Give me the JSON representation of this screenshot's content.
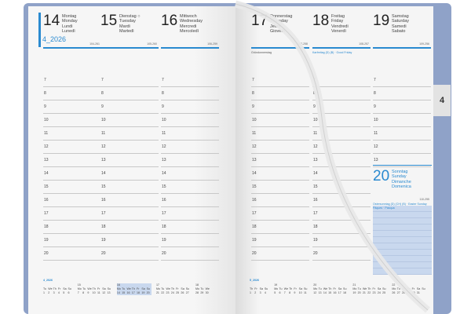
{
  "month_label": "4_2026",
  "tab": "4",
  "hours": [
    "7",
    "8",
    "9",
    "10",
    "11",
    "12",
    "13",
    "14",
    "15",
    "16",
    "17",
    "18",
    "19",
    "20"
  ],
  "left_days": [
    {
      "num": "14",
      "names": [
        "Montag",
        "Monday",
        "Lundi",
        "Lunedì"
      ],
      "code": "104-261",
      "note": ""
    },
    {
      "num": "15",
      "names": [
        "Dienstag ○",
        "Tuesday",
        "Mardi",
        "Martedì"
      ],
      "code": "105-260",
      "note": ""
    },
    {
      "num": "16",
      "names": [
        "Mittwoch",
        "Wednesday",
        "Mercredi",
        "Mercoledì"
      ],
      "code": "106-259",
      "note": ""
    }
  ],
  "right_days": [
    {
      "num": "17",
      "names": [
        "Donnerstag",
        "Thursday",
        "Jeudi",
        "Giovedì"
      ],
      "code": "107-258",
      "note": "Gründonnerstag"
    },
    {
      "num": "18",
      "names": [
        "Freitag",
        "Friday",
        "Vendredi",
        "Venerdì"
      ],
      "code": "108-257",
      "note": "Karfreitag (D) (B) · Good Friday",
      "note_blue": true
    },
    {
      "num": "19",
      "names": [
        "Samstag",
        "Saturday",
        "Samedi",
        "Sabato"
      ],
      "code": "109-256",
      "note": ""
    }
  ],
  "sunday": {
    "num": "20",
    "names": [
      "Sonntag",
      "Sunday",
      "Dimanche",
      "Domenica"
    ],
    "code": "110-255",
    "note": "Ostersonntag (D) (CH) (B) · Easter Sunday",
    "note2": "Pâques · Pasqua"
  },
  "mini_left": {
    "title": "4_2026",
    "weeks": [
      {
        "wk": "",
        "days": [
          "Tu",
          "We",
          "Th",
          "Fr",
          "Sa",
          "Su"
        ],
        "dates": [
          "1",
          "2",
          "3",
          "4",
          "5",
          "6"
        ]
      },
      {
        "wk": "15",
        "days": [
          "Mo",
          "Tu",
          "We",
          "Th",
          "Fr",
          "Sa",
          "Su"
        ],
        "dates": [
          "7",
          "8",
          "9",
          "10",
          "11",
          "12",
          "13"
        ]
      },
      {
        "wk": "16",
        "days": [
          "Mo",
          "Tu",
          "We",
          "Th",
          "Fr",
          "Sa",
          "Su"
        ],
        "dates": [
          "14",
          "15",
          "16",
          "17",
          "18",
          "19",
          "20"
        ],
        "current": true
      },
      {
        "wk": "17",
        "days": [
          "Mo",
          "Tu",
          "We",
          "Th",
          "Fr",
          "Sa",
          "Su"
        ],
        "dates": [
          "21",
          "22",
          "23",
          "24",
          "25",
          "26",
          "27"
        ]
      },
      {
        "wk": "18",
        "days": [
          "Mo",
          "Tu",
          "We"
        ],
        "dates": [
          "28",
          "29",
          "30"
        ]
      }
    ]
  },
  "mini_right": {
    "title": "5_2026",
    "weeks": [
      {
        "wk": "",
        "days": [
          "Th",
          "Fr",
          "Sa",
          "Su"
        ],
        "dates": [
          "1",
          "2",
          "3",
          "4"
        ]
      },
      {
        "wk": "19",
        "days": [
          "Mo",
          "Tu",
          "We",
          "Th",
          "Fr",
          "Sa",
          "Su"
        ],
        "dates": [
          "5",
          "6",
          "7",
          "8",
          "9",
          "10",
          "11"
        ]
      },
      {
        "wk": "20",
        "days": [
          "Mo",
          "Tu",
          "We",
          "Th",
          "Fr",
          "Sa",
          "Su"
        ],
        "dates": [
          "12",
          "13",
          "14",
          "15",
          "16",
          "17",
          "18"
        ]
      },
      {
        "wk": "21",
        "days": [
          "Mo",
          "Tu",
          "We",
          "Th",
          "Fr",
          "Sa",
          "Su"
        ],
        "dates": [
          "19",
          "20",
          "21",
          "22",
          "23",
          "24",
          "25"
        ]
      },
      {
        "wk": "22",
        "days": [
          "Mo",
          "Tu",
          "We",
          "Th",
          "Fr",
          "Sa",
          "Su"
        ],
        "dates": [
          "26",
          "27",
          "28",
          "29",
          "30",
          "31",
          ""
        ]
      }
    ]
  },
  "colors": {
    "accent": "#2a8ad0",
    "cover": "#8fa2c8",
    "highlight": "#c9d8ee"
  }
}
